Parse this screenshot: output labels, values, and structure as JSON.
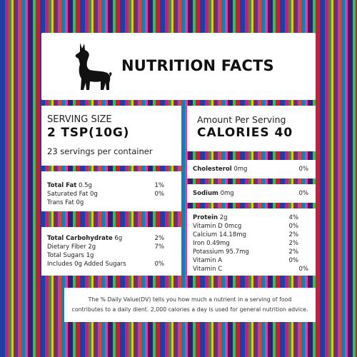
{
  "header": {
    "title": "NUTRITION FACTS",
    "icon": "llama-icon"
  },
  "serving": {
    "label": "SERVING SIZE",
    "size": "2 TSP(10G)",
    "servings_per_container": "23 servings per container"
  },
  "calories": {
    "label": "Amount Per Serving",
    "value": "CALORIES 40"
  },
  "fat": {
    "rows": [
      {
        "bold": "Total Fat",
        "rest": " 0.5g",
        "dv": "1%"
      },
      {
        "bold": "",
        "rest": "Saturated Fat 0g",
        "dv": "0%"
      },
      {
        "bold": "",
        "rest": "Trans Fat 0g",
        "dv": ""
      }
    ]
  },
  "cholesterol": {
    "bold": "Cholesterol",
    "rest": " 0mg",
    "dv": "0%"
  },
  "sodium": {
    "bold": "Sodium",
    "rest": " 0mg",
    "dv": "0%"
  },
  "carbs": {
    "rows": [
      {
        "bold": "Total Carbohydrate",
        "rest": " 6g",
        "dv": "2%"
      },
      {
        "bold": "",
        "rest": "Dietary Fiber 2g",
        "dv": "7%"
      },
      {
        "bold": "",
        "rest": "Total Sugars 1g",
        "dv": ""
      },
      {
        "bold": "",
        "rest": "Includes 0g Added Sugars",
        "dv": "0%"
      }
    ]
  },
  "protein": {
    "rows": [
      {
        "bold": "Protein",
        "rest": " 2g",
        "dv": "4%"
      },
      {
        "bold": "",
        "rest": "Vitamin D 0mcg",
        "dv": "0%"
      },
      {
        "bold": "",
        "rest": "Calcium 14.18mg",
        "dv": "2%"
      },
      {
        "bold": "",
        "rest": "Iron 0.49mg",
        "dv": "2%"
      },
      {
        "bold": "",
        "rest": "Potassium 95.7mg",
        "dv": "2%"
      },
      {
        "bold": "",
        "rest": "Vitamin A",
        "dv": "0%"
      },
      {
        "bold": "",
        "rest": "Vitamin C",
        "dv": "0%"
      }
    ]
  },
  "footnote": {
    "line1": "The % Daily Value(DV) tells you how much a nutrient in a serving of food",
    "line2": "contributes to a daily dient. 2,000 calories a day is used for general nutrition advice."
  },
  "colors": {
    "panel": "#ffffff",
    "text": "#111111",
    "stripe_blue": "#1d3fa8",
    "stripe_pink": "#e3146b"
  }
}
